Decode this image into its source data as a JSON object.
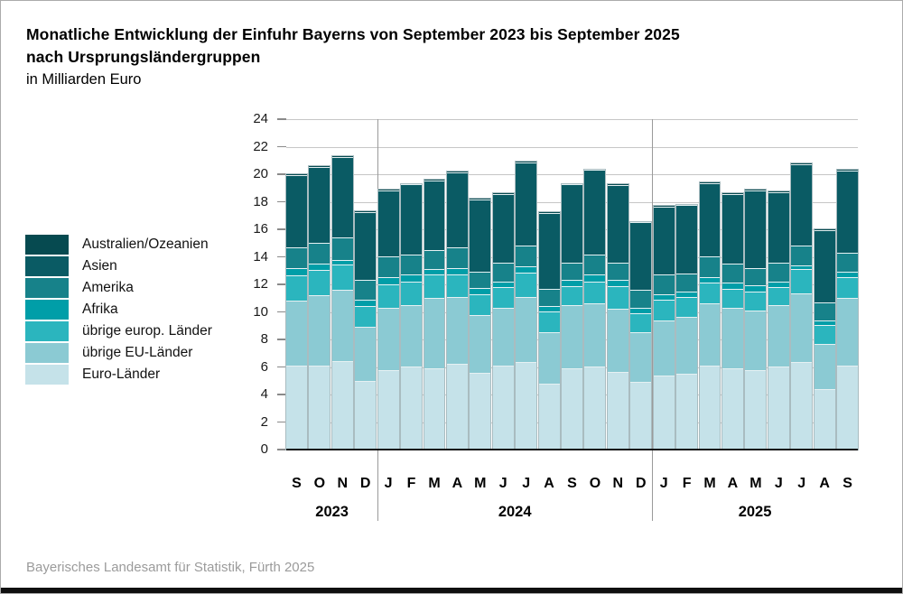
{
  "header": {
    "title_line1": "Monatliche Entwicklung der Einfuhr Bayerns von September 2023 bis September 2025",
    "title_line2": "nach Ursprungsländergruppen",
    "subtitle": "in Milliarden Euro"
  },
  "footer": {
    "source": "Bayerisches Landesamt für Statistik, Fürth 2025"
  },
  "chart_data": {
    "type": "bar",
    "stacked": true,
    "title": "Monatliche Entwicklung der Einfuhr Bayerns von September 2023 bis September 2025 nach Ursprungsländergruppen",
    "unit": "Milliarden Euro",
    "ylim": [
      0,
      24
    ],
    "ytick_step": 2,
    "grid": true,
    "legend_position": "left",
    "categories": [
      "S",
      "O",
      "N",
      "D",
      "J",
      "F",
      "M",
      "A",
      "M",
      "J",
      "J",
      "A",
      "S",
      "O",
      "N",
      "D",
      "J",
      "F",
      "M",
      "A",
      "M",
      "J",
      "J",
      "A",
      "S"
    ],
    "year_groups": [
      {
        "label": "2023",
        "span": 4
      },
      {
        "label": "2024",
        "span": 12
      },
      {
        "label": "2025",
        "span": 9
      }
    ],
    "series": [
      {
        "name": "Australien/Ozeanien",
        "color": "#064a50",
        "values": [
          0.05,
          0.05,
          0.05,
          0.05,
          0.05,
          0.05,
          0.05,
          0.05,
          0.05,
          0.05,
          0.05,
          0.05,
          0.05,
          0.05,
          0.05,
          0.05,
          0.05,
          0.05,
          0.05,
          0.05,
          0.05,
          0.05,
          0.05,
          0.05,
          0.05
        ]
      },
      {
        "name": "Asien",
        "color": "#0a5b64",
        "values": [
          5.25,
          5.55,
          5.85,
          4.95,
          4.85,
          5.1,
          5.05,
          5.45,
          5.25,
          4.95,
          6.05,
          5.5,
          5.65,
          6.15,
          5.65,
          4.9,
          4.95,
          4.95,
          5.3,
          5.05,
          5.65,
          5.1,
          5.95,
          5.25,
          5.95
        ]
      },
      {
        "name": "Amerika",
        "color": "#17828a",
        "values": [
          1.55,
          1.5,
          1.6,
          1.4,
          1.5,
          1.45,
          1.4,
          1.5,
          1.15,
          1.4,
          1.5,
          1.3,
          1.25,
          1.45,
          1.25,
          1.3,
          1.4,
          1.3,
          1.55,
          1.4,
          1.25,
          1.4,
          1.4,
          1.3,
          1.4
        ]
      },
      {
        "name": "Afrika",
        "color": "#009ea8",
        "values": [
          0.5,
          0.45,
          0.35,
          0.5,
          0.5,
          0.5,
          0.4,
          0.45,
          0.45,
          0.4,
          0.45,
          0.4,
          0.45,
          0.5,
          0.45,
          0.4,
          0.4,
          0.4,
          0.4,
          0.4,
          0.45,
          0.4,
          0.3,
          0.35,
          0.4
        ]
      },
      {
        "name": "übrige europ. Länder",
        "color": "#2bb5be",
        "values": [
          1.8,
          1.85,
          1.85,
          1.5,
          1.7,
          1.7,
          1.7,
          1.65,
          1.5,
          1.5,
          1.75,
          1.5,
          1.4,
          1.6,
          1.6,
          1.35,
          1.5,
          1.45,
          1.45,
          1.4,
          1.4,
          1.3,
          1.75,
          1.35,
          1.5
        ]
      },
      {
        "name": "übrige EU-Länder",
        "color": "#8bcad3",
        "values": [
          4.75,
          5.1,
          5.2,
          3.9,
          4.5,
          4.5,
          5.1,
          4.9,
          4.2,
          4.2,
          4.75,
          3.7,
          4.6,
          4.55,
          4.6,
          3.65,
          4.0,
          4.15,
          4.55,
          4.4,
          4.35,
          4.5,
          5.0,
          3.3,
          4.9
        ]
      },
      {
        "name": "Euro-Länder",
        "color": "#c5e2e9",
        "values": [
          6.1,
          6.1,
          6.4,
          5.0,
          5.8,
          6.0,
          5.9,
          6.2,
          5.6,
          6.1,
          6.35,
          4.8,
          5.9,
          6.05,
          5.65,
          4.9,
          5.4,
          5.5,
          6.1,
          5.9,
          5.75,
          6.0,
          6.35,
          4.4,
          6.1
        ]
      }
    ],
    "colors": {
      "gridline": "#c6c6c6",
      "axis": "#141414",
      "year_separator": "#9a9a9a",
      "source_text": "#9b9b9b"
    }
  }
}
